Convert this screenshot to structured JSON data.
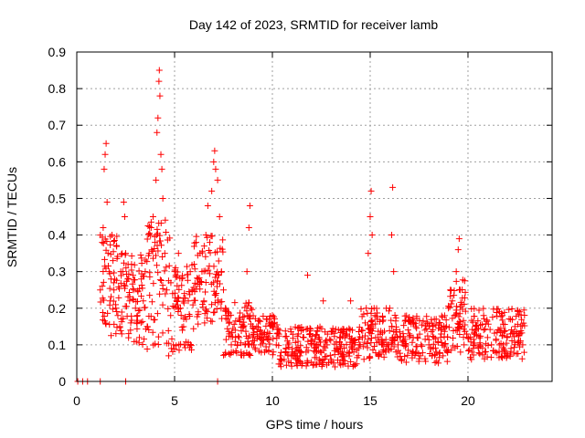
{
  "chart_data": {
    "type": "scatter",
    "title": "Day 142 of 2023, SRMTID for receiver lamb",
    "xlabel": "GPS time / hours",
    "ylabel": "SRMTID / TECUs",
    "xlim": [
      0,
      24.3
    ],
    "ylim": [
      0,
      0.9
    ],
    "xticks": [
      0,
      5,
      10,
      15,
      20
    ],
    "xtick_labels": [
      "0",
      "5",
      "10",
      "15",
      "20"
    ],
    "yticks": [
      0,
      0.1,
      0.2,
      0.3,
      0.4,
      0.5,
      0.6,
      0.7,
      0.8,
      0.9
    ],
    "ytick_labels": [
      "0",
      "0.1",
      "0.2",
      "0.3",
      "0.4",
      "0.5",
      "0.6",
      "0.7",
      "0.8",
      "0.9"
    ],
    "grid": true,
    "marker": "+",
    "color": "#ff0000",
    "series": [
      {
        "name": "SRMTID",
        "points": [
          [
            0.05,
            0.0
          ],
          [
            0.3,
            0.0
          ],
          [
            0.55,
            0.0
          ],
          [
            1.2,
            0.0
          ],
          [
            2.5,
            0.0
          ],
          [
            7.2,
            0.0
          ],
          [
            1.2,
            0.25
          ],
          [
            1.3,
            0.38
          ],
          [
            1.35,
            0.42
          ],
          [
            1.4,
            0.58
          ],
          [
            1.45,
            0.62
          ],
          [
            1.5,
            0.65
          ],
          [
            1.55,
            0.49
          ],
          [
            1.6,
            0.35
          ],
          [
            1.65,
            0.3
          ],
          [
            1.7,
            0.22
          ],
          [
            1.75,
            0.28
          ],
          [
            1.8,
            0.4
          ],
          [
            1.85,
            0.33
          ],
          [
            1.9,
            0.25
          ],
          [
            2.0,
            0.2
          ],
          [
            2.1,
            0.18
          ],
          [
            2.2,
            0.15
          ],
          [
            2.3,
            0.13
          ],
          [
            2.35,
            0.3
          ],
          [
            2.4,
            0.49
          ],
          [
            2.45,
            0.45
          ],
          [
            2.5,
            0.35
          ],
          [
            2.6,
            0.28
          ],
          [
            2.7,
            0.22
          ],
          [
            2.8,
            0.32
          ],
          [
            2.9,
            0.25
          ],
          [
            3.0,
            0.2
          ],
          [
            3.1,
            0.18
          ],
          [
            3.2,
            0.12
          ],
          [
            3.3,
            0.28
          ],
          [
            3.4,
            0.22
          ],
          [
            3.5,
            0.3
          ],
          [
            3.6,
            0.15
          ],
          [
            3.7,
            0.35
          ],
          [
            3.8,
            0.42
          ],
          [
            3.9,
            0.45
          ],
          [
            4.0,
            0.38
          ],
          [
            4.05,
            0.55
          ],
          [
            4.1,
            0.68
          ],
          [
            4.15,
            0.72
          ],
          [
            4.2,
            0.82
          ],
          [
            4.22,
            0.85
          ],
          [
            4.25,
            0.78
          ],
          [
            4.3,
            0.62
          ],
          [
            4.35,
            0.58
          ],
          [
            4.4,
            0.5
          ],
          [
            4.5,
            0.35
          ],
          [
            4.6,
            0.25
          ],
          [
            4.7,
            0.07
          ],
          [
            4.8,
            0.18
          ],
          [
            4.9,
            0.24
          ],
          [
            5.0,
            0.3
          ],
          [
            5.1,
            0.22
          ],
          [
            5.2,
            0.35
          ],
          [
            5.3,
            0.2
          ],
          [
            5.4,
            0.14
          ],
          [
            5.5,
            0.1
          ],
          [
            5.6,
            0.17
          ],
          [
            5.7,
            0.22
          ],
          [
            5.8,
            0.3
          ],
          [
            5.9,
            0.25
          ],
          [
            6.0,
            0.32
          ],
          [
            6.1,
            0.38
          ],
          [
            6.2,
            0.28
          ],
          [
            6.3,
            0.35
          ],
          [
            6.4,
            0.3
          ],
          [
            6.5,
            0.22
          ],
          [
            6.6,
            0.4
          ],
          [
            6.7,
            0.48
          ],
          [
            6.8,
            0.38
          ],
          [
            6.9,
            0.52
          ],
          [
            7.0,
            0.6
          ],
          [
            7.05,
            0.63
          ],
          [
            7.1,
            0.58
          ],
          [
            7.2,
            0.55
          ],
          [
            7.3,
            0.45
          ],
          [
            7.4,
            0.3
          ],
          [
            7.5,
            0.25
          ],
          [
            7.6,
            0.2
          ],
          [
            7.7,
            0.17
          ],
          [
            7.8,
            0.13
          ],
          [
            7.9,
            0.1
          ],
          [
            8.0,
            0.08
          ],
          [
            8.1,
            0.14
          ],
          [
            8.2,
            0.1
          ],
          [
            8.3,
            0.12
          ],
          [
            8.4,
            0.08
          ],
          [
            8.5,
            0.15
          ],
          [
            8.6,
            0.1
          ],
          [
            8.7,
            0.3
          ],
          [
            8.8,
            0.42
          ],
          [
            8.85,
            0.48
          ],
          [
            8.9,
            0.2
          ],
          [
            9.0,
            0.12
          ],
          [
            9.2,
            0.15
          ],
          [
            9.4,
            0.1
          ],
          [
            9.6,
            0.08
          ],
          [
            9.8,
            0.12
          ],
          [
            10.0,
            0.18
          ],
          [
            10.2,
            0.1
          ],
          [
            10.4,
            0.07
          ],
          [
            10.6,
            0.06
          ],
          [
            10.8,
            0.1
          ],
          [
            11.0,
            0.08
          ],
          [
            11.2,
            0.06
          ],
          [
            11.4,
            0.07
          ],
          [
            11.6,
            0.12
          ],
          [
            11.8,
            0.29
          ],
          [
            12.0,
            0.1
          ],
          [
            12.2,
            0.08
          ],
          [
            12.4,
            0.06
          ],
          [
            12.6,
            0.22
          ],
          [
            12.8,
            0.1
          ],
          [
            13.0,
            0.06
          ],
          [
            13.2,
            0.04
          ],
          [
            13.4,
            0.08
          ],
          [
            13.6,
            0.06
          ],
          [
            13.8,
            0.14
          ],
          [
            14.0,
            0.22
          ],
          [
            14.2,
            0.1
          ],
          [
            14.4,
            0.09
          ],
          [
            14.6,
            0.12
          ],
          [
            14.8,
            0.2
          ],
          [
            14.9,
            0.35
          ],
          [
            15.0,
            0.45
          ],
          [
            15.05,
            0.52
          ],
          [
            15.1,
            0.4
          ],
          [
            15.2,
            0.2
          ],
          [
            15.4,
            0.12
          ],
          [
            15.6,
            0.1
          ],
          [
            15.8,
            0.08
          ],
          [
            16.0,
            0.2
          ],
          [
            16.1,
            0.4
          ],
          [
            16.15,
            0.53
          ],
          [
            16.2,
            0.3
          ],
          [
            16.4,
            0.12
          ],
          [
            16.6,
            0.06
          ],
          [
            16.8,
            0.1
          ],
          [
            17.0,
            0.13
          ],
          [
            17.2,
            0.08
          ],
          [
            17.4,
            0.12
          ],
          [
            17.6,
            0.1
          ],
          [
            17.8,
            0.14
          ],
          [
            18.0,
            0.1
          ],
          [
            18.2,
            0.15
          ],
          [
            18.4,
            0.08
          ],
          [
            18.6,
            0.12
          ],
          [
            18.8,
            0.1
          ],
          [
            19.0,
            0.2
          ],
          [
            19.1,
            0.25
          ],
          [
            19.2,
            0.22
          ],
          [
            19.3,
            0.18
          ],
          [
            19.4,
            0.3
          ],
          [
            19.5,
            0.36
          ],
          [
            19.55,
            0.39
          ],
          [
            19.6,
            0.25
          ],
          [
            19.7,
            0.15
          ],
          [
            19.8,
            0.1
          ],
          [
            20.0,
            0.12
          ],
          [
            20.2,
            0.08
          ],
          [
            20.4,
            0.14
          ],
          [
            20.6,
            0.1
          ],
          [
            20.8,
            0.18
          ],
          [
            21.0,
            0.12
          ],
          [
            21.2,
            0.1
          ],
          [
            21.4,
            0.08
          ],
          [
            21.6,
            0.14
          ],
          [
            21.8,
            0.1
          ],
          [
            22.0,
            0.12
          ],
          [
            22.2,
            0.09
          ],
          [
            22.4,
            0.15
          ],
          [
            22.6,
            0.11
          ],
          [
            22.8,
            0.1
          ]
        ]
      }
    ],
    "density": {
      "segments": [
        [
          1.2,
          2.2,
          0.12,
          0.4
        ],
        [
          2.2,
          3.6,
          0.1,
          0.35
        ],
        [
          3.6,
          4.8,
          0.08,
          0.45
        ],
        [
          4.8,
          6.0,
          0.08,
          0.32
        ],
        [
          6.0,
          7.5,
          0.15,
          0.4
        ],
        [
          7.5,
          9.0,
          0.07,
          0.22
        ],
        [
          9.0,
          10.3,
          0.07,
          0.18
        ],
        [
          10.3,
          14.5,
          0.04,
          0.15
        ],
        [
          14.5,
          16.5,
          0.06,
          0.2
        ],
        [
          16.5,
          19.0,
          0.05,
          0.18
        ],
        [
          19.0,
          20.0,
          0.08,
          0.28
        ],
        [
          20.0,
          22.9,
          0.06,
          0.2
        ]
      ],
      "points_per_hour": 55
    }
  }
}
